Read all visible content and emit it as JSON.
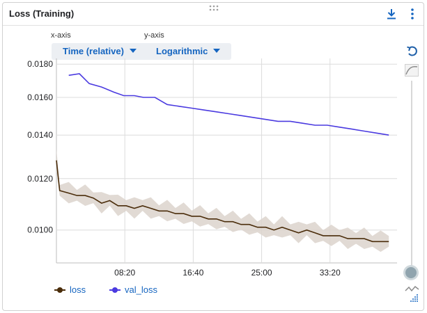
{
  "card": {
    "title": "Loss (Training)"
  },
  "controls": {
    "x_axis_label": "x-axis",
    "x_axis_value": "Time (relative)",
    "y_axis_label": "y-axis",
    "y_axis_value": "Logarithmic"
  },
  "colors": {
    "loss": "#4a2c0a",
    "loss_band": "#dcd4cc",
    "val_loss": "#4a3ae0",
    "grid": "#dcdcdc",
    "accent": "#1565c0"
  },
  "chart_data": {
    "type": "line",
    "y_scale": "log",
    "ylim": [
      0.0089,
      0.0181
    ],
    "xlim_minutes": [
      0,
      41.5
    ],
    "x_ticks": [
      "08:20",
      "16:40",
      "25:00",
      "33:20"
    ],
    "y_ticks": [
      "0.0180",
      "0.0160",
      "0.0140",
      "0.0120",
      "0.0100"
    ],
    "grid": true,
    "legend_position": "bottom-left",
    "series": [
      {
        "name": "loss",
        "x_minutes": [
          0,
          0.4,
          1.5,
          2.5,
          3.5,
          4.5,
          5.5,
          6.5,
          7.5,
          8.5,
          9.5,
          10.5,
          11.5,
          12.5,
          13.5,
          14.5,
          15.5,
          16.5,
          17.5,
          18.5,
          19.5,
          20.5,
          21.5,
          22.5,
          23.5,
          24.5,
          25.5,
          26.5,
          27.5,
          28.5,
          29.5,
          30.5,
          31.5,
          32.5,
          33.5,
          34.5,
          35.5,
          36.5,
          37.5,
          38.5,
          39.5,
          40.5
        ],
        "values": [
          0.0128,
          0.0115,
          0.0114,
          0.0113,
          0.0113,
          0.0112,
          0.011,
          0.0111,
          0.0109,
          0.0109,
          0.0108,
          0.0109,
          0.0108,
          0.0107,
          0.0107,
          0.0106,
          0.0106,
          0.0105,
          0.0105,
          0.0104,
          0.0104,
          0.0103,
          0.0103,
          0.0102,
          0.0102,
          0.0101,
          0.0101,
          0.01,
          0.0101,
          0.01,
          0.0099,
          0.01,
          0.0099,
          0.0098,
          0.0098,
          0.0098,
          0.0097,
          0.0097,
          0.0097,
          0.0096,
          0.0096,
          0.0096
        ]
      },
      {
        "name": "val_loss",
        "x_minutes": [
          1.5,
          2.8,
          4.0,
          5.5,
          7.0,
          8.2,
          9.5,
          10.6,
          12.0,
          13.5,
          15.0,
          16.5,
          18.0,
          19.5,
          21.0,
          22.5,
          24.0,
          25.5,
          27.0,
          28.5,
          30.0,
          31.5,
          33.0,
          34.5,
          36.0,
          37.5,
          39.0,
          40.5
        ],
        "values": [
          0.0173,
          0.0174,
          0.0168,
          0.0166,
          0.0163,
          0.0161,
          0.0161,
          0.016,
          0.016,
          0.0156,
          0.0155,
          0.0154,
          0.0153,
          0.0152,
          0.0151,
          0.015,
          0.0149,
          0.0148,
          0.0147,
          0.0147,
          0.0146,
          0.0145,
          0.0145,
          0.0144,
          0.0143,
          0.0142,
          0.0141,
          0.014
        ]
      }
    ]
  },
  "legend": [
    {
      "label": "loss"
    },
    {
      "label": "val_loss"
    }
  ],
  "icons": {
    "download": "download-icon",
    "more": "more-vert-icon",
    "reset": "reset-zoom-icon",
    "smoothing": "smoothing-curve-icon",
    "scatter": "scatter-icon"
  }
}
